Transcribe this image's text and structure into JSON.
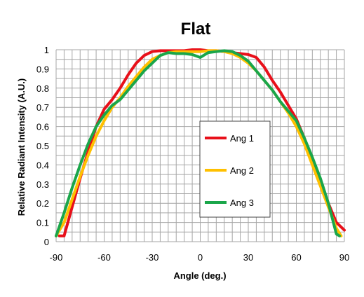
{
  "chart_data": {
    "type": "line",
    "title": "Flat",
    "xlabel": "Angle (deg.)",
    "ylabel": "Relative Radiant Intensity (A.U.)",
    "xlim": [
      -90,
      90
    ],
    "ylim": [
      0,
      1
    ],
    "xticks": [
      -90,
      -60,
      -30,
      0,
      30,
      60,
      90
    ],
    "yticks": [
      0,
      0.1,
      0.2,
      0.3,
      0.4,
      0.5,
      0.6,
      0.7,
      0.8,
      0.9,
      1
    ],
    "xtick_labels": [
      "-90",
      "-60",
      "-30",
      "0",
      "30",
      "60",
      "90"
    ],
    "ytick_labels": [
      "0",
      "0.1",
      "0.2",
      "0.3",
      "0.4",
      "0.5",
      "0.6",
      "0.7",
      "0.8",
      "0.9",
      "1"
    ],
    "grid": true,
    "legend_position": "center-right",
    "series": [
      {
        "name": "Ang 1",
        "color": "#e8101a",
        "points": [
          [
            -88,
            0.03
          ],
          [
            -85,
            0.03
          ],
          [
            -80,
            0.18
          ],
          [
            -75,
            0.33
          ],
          [
            -70,
            0.47
          ],
          [
            -65,
            0.6
          ],
          [
            -60,
            0.69
          ],
          [
            -55,
            0.74
          ],
          [
            -50,
            0.8
          ],
          [
            -45,
            0.87
          ],
          [
            -40,
            0.93
          ],
          [
            -35,
            0.97
          ],
          [
            -30,
            0.99
          ],
          [
            -25,
            0.995
          ],
          [
            -20,
            0.995
          ],
          [
            -15,
            0.995
          ],
          [
            -10,
            0.995
          ],
          [
            -5,
            1.0
          ],
          [
            0,
            1.0
          ],
          [
            5,
            0.995
          ],
          [
            10,
            0.995
          ],
          [
            15,
            0.99
          ],
          [
            20,
            0.985
          ],
          [
            25,
            0.98
          ],
          [
            30,
            0.975
          ],
          [
            35,
            0.96
          ],
          [
            40,
            0.91
          ],
          [
            45,
            0.84
          ],
          [
            50,
            0.78
          ],
          [
            55,
            0.71
          ],
          [
            60,
            0.64
          ],
          [
            65,
            0.54
          ],
          [
            70,
            0.43
          ],
          [
            75,
            0.32
          ],
          [
            80,
            0.2
          ],
          [
            85,
            0.1
          ],
          [
            90,
            0.06
          ]
        ]
      },
      {
        "name": "Ang 2",
        "color": "#ffc000",
        "points": [
          [
            -90,
            0.03
          ],
          [
            -85,
            0.1
          ],
          [
            -80,
            0.22
          ],
          [
            -75,
            0.34
          ],
          [
            -70,
            0.45
          ],
          [
            -65,
            0.55
          ],
          [
            -60,
            0.63
          ],
          [
            -55,
            0.7
          ],
          [
            -50,
            0.75
          ],
          [
            -45,
            0.81
          ],
          [
            -40,
            0.86
          ],
          [
            -35,
            0.91
          ],
          [
            -30,
            0.95
          ],
          [
            -25,
            0.97
          ],
          [
            -20,
            0.985
          ],
          [
            -15,
            0.99
          ],
          [
            -10,
            0.99
          ],
          [
            -5,
            0.99
          ],
          [
            0,
            0.99
          ],
          [
            5,
            0.995
          ],
          [
            10,
            0.995
          ],
          [
            15,
            0.99
          ],
          [
            20,
            0.98
          ],
          [
            25,
            0.96
          ],
          [
            30,
            0.93
          ],
          [
            35,
            0.89
          ],
          [
            40,
            0.84
          ],
          [
            45,
            0.79
          ],
          [
            50,
            0.73
          ],
          [
            55,
            0.67
          ],
          [
            60,
            0.6
          ],
          [
            65,
            0.51
          ],
          [
            70,
            0.4
          ],
          [
            75,
            0.29
          ],
          [
            80,
            0.18
          ],
          [
            85,
            0.07
          ],
          [
            88,
            0.03
          ]
        ]
      },
      {
        "name": "Ang 3",
        "color": "#1aa64a",
        "points": [
          [
            -90,
            0.03
          ],
          [
            -85,
            0.15
          ],
          [
            -80,
            0.28
          ],
          [
            -75,
            0.4
          ],
          [
            -70,
            0.51
          ],
          [
            -65,
            0.6
          ],
          [
            -60,
            0.66
          ],
          [
            -55,
            0.71
          ],
          [
            -50,
            0.74
          ],
          [
            -45,
            0.79
          ],
          [
            -40,
            0.84
          ],
          [
            -35,
            0.89
          ],
          [
            -30,
            0.93
          ],
          [
            -25,
            0.97
          ],
          [
            -20,
            0.985
          ],
          [
            -15,
            0.98
          ],
          [
            -10,
            0.98
          ],
          [
            -5,
            0.975
          ],
          [
            0,
            0.96
          ],
          [
            5,
            0.985
          ],
          [
            10,
            0.99
          ],
          [
            15,
            0.995
          ],
          [
            20,
            0.99
          ],
          [
            25,
            0.97
          ],
          [
            30,
            0.94
          ],
          [
            35,
            0.89
          ],
          [
            40,
            0.84
          ],
          [
            45,
            0.79
          ],
          [
            50,
            0.73
          ],
          [
            55,
            0.68
          ],
          [
            60,
            0.63
          ],
          [
            65,
            0.54
          ],
          [
            70,
            0.44
          ],
          [
            75,
            0.33
          ],
          [
            80,
            0.2
          ],
          [
            85,
            0.04
          ],
          [
            87,
            0.03
          ]
        ]
      }
    ]
  }
}
